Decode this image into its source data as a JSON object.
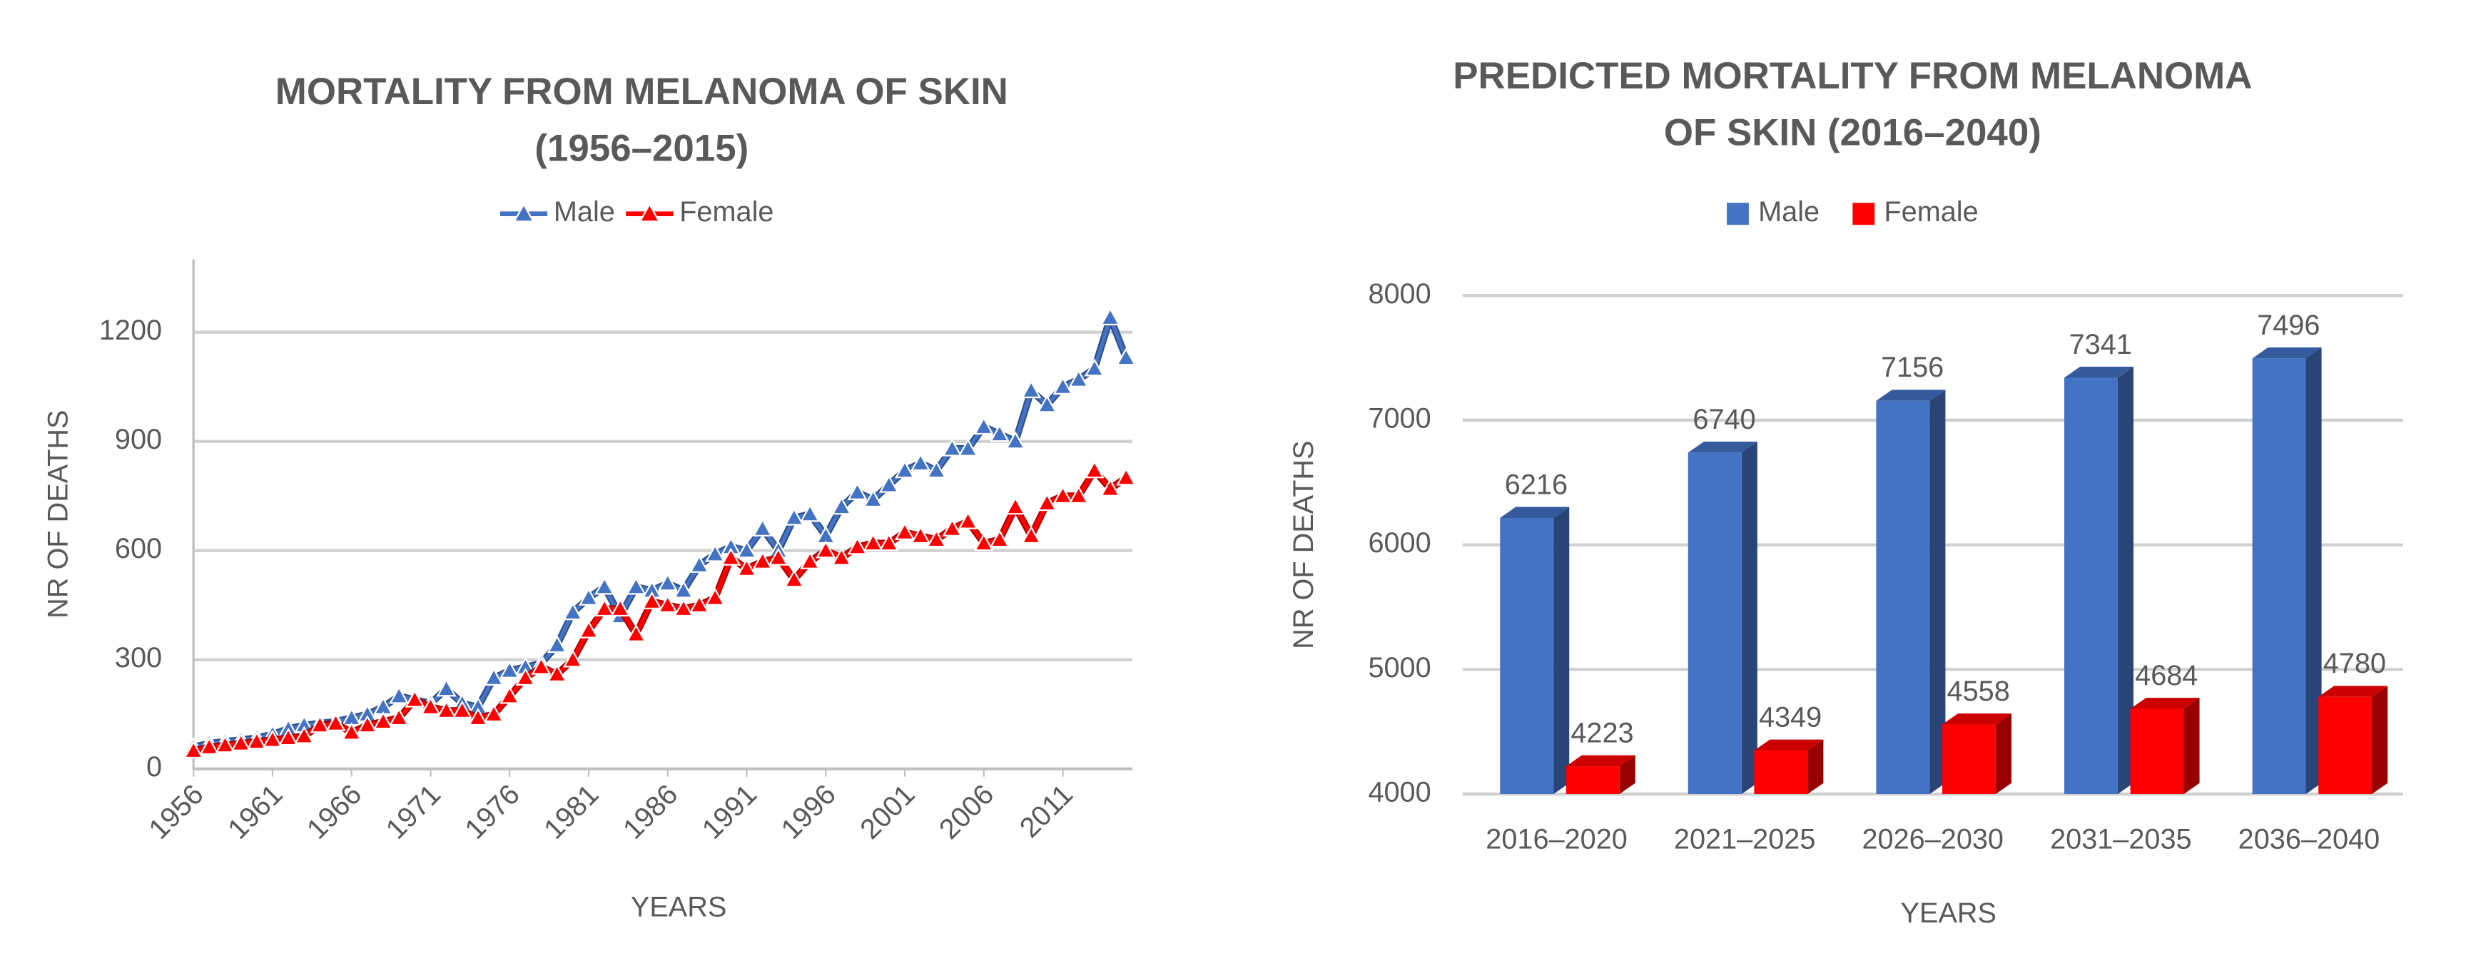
{
  "chart_data": [
    {
      "type": "line",
      "title": [
        "MORTALITY FROM MELANOMA OF SKIN",
        "(1956–2015)"
      ],
      "xlabel": "YEARS",
      "ylabel": "NR OF DEATHS",
      "x": [
        1956,
        1957,
        1958,
        1959,
        1960,
        1961,
        1962,
        1963,
        1964,
        1965,
        1966,
        1967,
        1968,
        1969,
        1970,
        1971,
        1972,
        1973,
        1974,
        1975,
        1976,
        1977,
        1978,
        1979,
        1980,
        1981,
        1982,
        1983,
        1984,
        1985,
        1986,
        1987,
        1988,
        1989,
        1990,
        1991,
        1992,
        1993,
        1994,
        1995,
        1996,
        1997,
        1998,
        1999,
        2000,
        2001,
        2002,
        2003,
        2004,
        2005,
        2006,
        2007,
        2008,
        2009,
        2010,
        2011,
        2012,
        2013,
        2014,
        2015
      ],
      "xlim": [
        1956,
        2015
      ],
      "xticks": [
        1956,
        1961,
        1966,
        1971,
        1976,
        1981,
        1986,
        1991,
        1996,
        2001,
        2006,
        2011
      ],
      "ylim": [
        0,
        1400
      ],
      "yticks": [
        0,
        300,
        600,
        900,
        1200
      ],
      "grid": true,
      "legend": "top",
      "series": [
        {
          "name": "Male",
          "color": "#4472c4",
          "values": [
            60,
            70,
            75,
            80,
            85,
            95,
            110,
            120,
            125,
            130,
            140,
            150,
            170,
            200,
            190,
            180,
            220,
            180,
            170,
            250,
            270,
            280,
            290,
            340,
            430,
            470,
            500,
            420,
            500,
            490,
            510,
            490,
            560,
            590,
            610,
            600,
            660,
            600,
            690,
            700,
            640,
            720,
            760,
            740,
            780,
            820,
            840,
            820,
            880,
            880,
            940,
            920,
            900,
            1040,
            1000,
            1050,
            1070,
            1100,
            1240,
            1130
          ]
        },
        {
          "name": "Female",
          "color": "#ff0000",
          "values": [
            50,
            60,
            65,
            70,
            75,
            80,
            85,
            90,
            120,
            125,
            100,
            120,
            130,
            140,
            190,
            170,
            160,
            160,
            140,
            150,
            200,
            250,
            280,
            260,
            300,
            380,
            440,
            440,
            370,
            460,
            450,
            440,
            450,
            470,
            580,
            550,
            570,
            580,
            520,
            570,
            600,
            580,
            610,
            620,
            620,
            650,
            640,
            630,
            660,
            680,
            620,
            630,
            720,
            640,
            730,
            750,
            750,
            820,
            770,
            800
          ]
        }
      ]
    },
    {
      "type": "bar3d",
      "title": [
        "PREDICTED MORTALITY FROM MELANOMA",
        "OF SKIN (2016–2040)"
      ],
      "xlabel": "YEARS",
      "ylabel": "NR OF DEATHS",
      "categories": [
        "2016–2020",
        "2021–2025",
        "2026–2030",
        "2031–2035",
        "2036–2040"
      ],
      "ylim": [
        4000,
        8000
      ],
      "yticks": [
        4000,
        5000,
        6000,
        7000,
        8000
      ],
      "grid": true,
      "legend": "top",
      "series": [
        {
          "name": "Male",
          "color": "#4472c4",
          "values": [
            6216,
            6740,
            7156,
            7341,
            7496
          ]
        },
        {
          "name": "Female",
          "color": "#ff0000",
          "values": [
            4223,
            4349,
            4558,
            4684,
            4780
          ]
        }
      ]
    }
  ]
}
